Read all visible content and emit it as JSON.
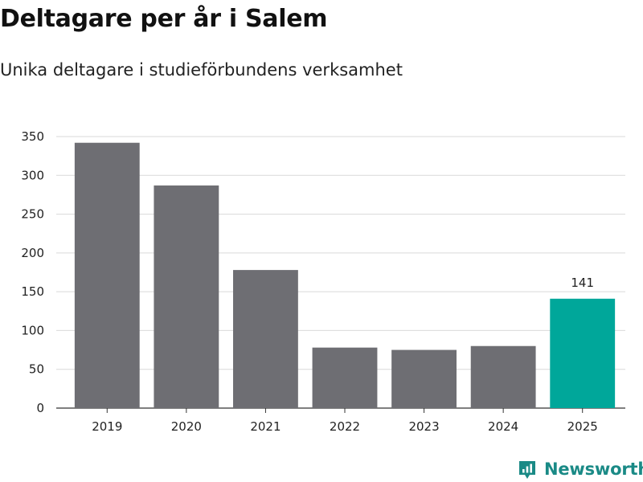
{
  "title": "Deltagare per år i Salem",
  "subtitle": "Unika deltagare i studieförbundens verksamhet",
  "brand": {
    "name": "Newsworthy",
    "icon": "newsworthy-logo-icon",
    "color": "#1a8a86"
  },
  "colors": {
    "bar": "#6e6e73",
    "highlight": "#00a79a",
    "grid": "#d9d9d9",
    "axis": "#333333"
  },
  "chart_data": {
    "type": "bar",
    "categories": [
      "2019",
      "2020",
      "2021",
      "2022",
      "2023",
      "2024",
      "2025"
    ],
    "values": [
      342,
      287,
      178,
      78,
      75,
      80,
      141
    ],
    "highlight_index": 6,
    "data_labels": [
      null,
      null,
      null,
      null,
      null,
      null,
      "141"
    ],
    "ylim": [
      0,
      350
    ],
    "yticks": [
      "0",
      "50",
      "100",
      "150",
      "200",
      "250",
      "300",
      "350"
    ],
    "grid": true,
    "legend": "none",
    "xlabel": "",
    "ylabel": ""
  }
}
